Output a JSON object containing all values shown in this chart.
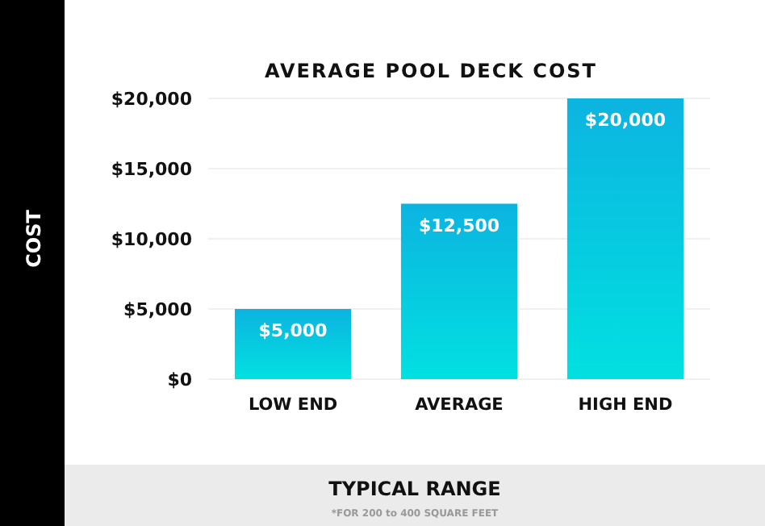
{
  "chart_data": {
    "type": "bar",
    "title": "AVERAGE POOL DECK COST",
    "ylabel": "COST",
    "xlabel": "TYPICAL RANGE",
    "annotations": [
      "*FOR 200 to 400 SQUARE FEET"
    ],
    "categories": [
      "LOW END",
      "AVERAGE",
      "HIGH END"
    ],
    "values": [
      5000,
      12500,
      20000
    ],
    "value_labels": [
      "$5,000",
      "$12,500",
      "$20,000"
    ],
    "color": "#0cb4e0",
    "ylim": [
      0,
      20000
    ],
    "yticks": [
      {
        "value": 0,
        "label": "$0"
      },
      {
        "value": 5000,
        "label": "$5,000"
      },
      {
        "value": 10000,
        "label": "$10,000"
      },
      {
        "value": 15000,
        "label": "$15,000"
      },
      {
        "value": 20000,
        "label": "$20,000"
      }
    ],
    "grid": "y"
  }
}
